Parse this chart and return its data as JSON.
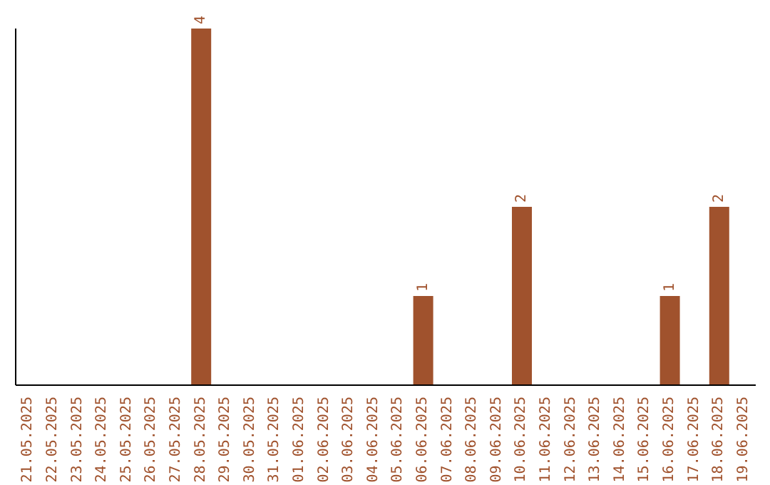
{
  "chart_data": {
    "type": "bar",
    "categories": [
      "21.05.2025",
      "22.05.2025",
      "23.05.2025",
      "24.05.2025",
      "25.05.2025",
      "26.05.2025",
      "27.05.2025",
      "28.05.2025",
      "29.05.2025",
      "30.05.2025",
      "31.05.2025",
      "01.06.2025",
      "02.06.2025",
      "03.06.2025",
      "04.06.2025",
      "05.06.2025",
      "06.06.2025",
      "07.06.2025",
      "08.06.2025",
      "09.06.2025",
      "10.06.2025",
      "11.06.2025",
      "12.06.2025",
      "13.06.2025",
      "14.06.2025",
      "15.06.2025",
      "16.06.2025",
      "17.06.2025",
      "18.06.2025",
      "19.06.2025"
    ],
    "values": [
      0,
      0,
      0,
      0,
      0,
      0,
      0,
      4,
      0,
      0,
      0,
      0,
      0,
      0,
      0,
      0,
      1,
      0,
      0,
      0,
      2,
      0,
      0,
      0,
      0,
      0,
      1,
      0,
      2,
      0
    ],
    "value_labels": [
      null,
      null,
      null,
      null,
      null,
      null,
      null,
      "4",
      null,
      null,
      null,
      null,
      null,
      null,
      null,
      null,
      "1",
      null,
      null,
      null,
      "2",
      null,
      null,
      null,
      null,
      null,
      "1",
      null,
      "2",
      null
    ],
    "color": "#a0522d",
    "grid": false,
    "legend": false
  }
}
